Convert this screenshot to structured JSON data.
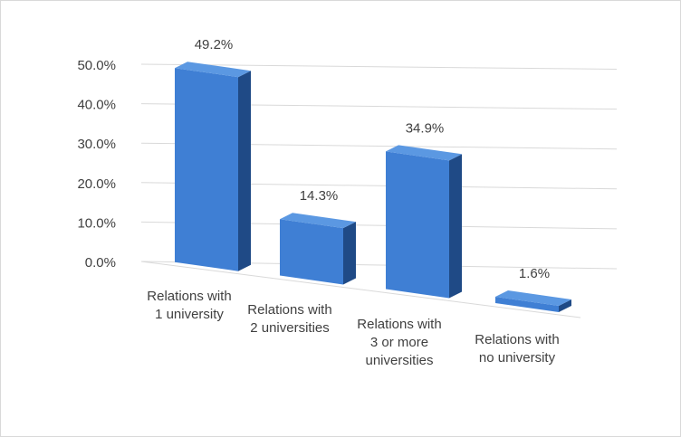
{
  "chart_data": {
    "type": "bar",
    "title": "",
    "xlabel": "",
    "ylabel": "",
    "categories": [
      [
        "Relations with",
        "1 university"
      ],
      [
        "Relations with",
        "2 universities"
      ],
      [
        "Relations with",
        "3 or more",
        "universities"
      ],
      [
        "Relations with",
        "no university"
      ]
    ],
    "values": [
      49.2,
      14.3,
      34.9,
      1.6
    ],
    "data_labels": [
      "49.2%",
      "14.3%",
      "34.9%",
      "1.6%"
    ],
    "ylim": [
      0,
      50
    ],
    "yticks": [
      "0.0%",
      "10.0%",
      "20.0%",
      "30.0%",
      "40.0%",
      "50.0%"
    ],
    "grid": true,
    "legend": "none",
    "style": "3d-column",
    "colors": {
      "bar_front": "#3f7fd4",
      "bar_side": "#1f4a86",
      "bar_top": "#5b98e2",
      "grid": "#d9d9d9",
      "text": "#404040"
    }
  }
}
